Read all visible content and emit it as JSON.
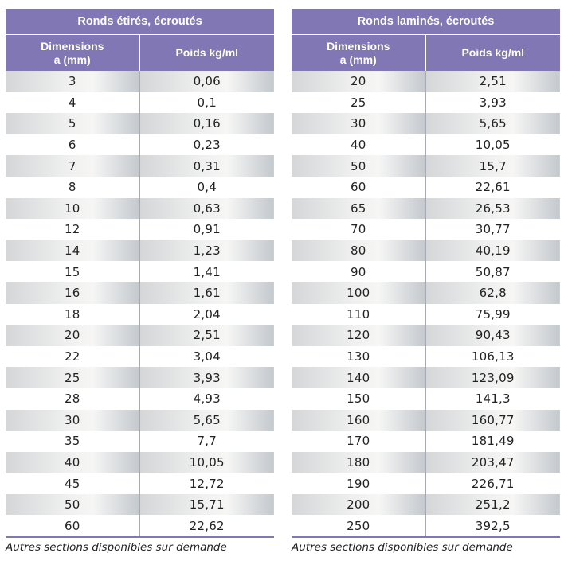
{
  "tables": [
    {
      "title": "Ronds étirés, écroutés",
      "col_dim_line1": "Dimensions",
      "col_dim_line2": "a (mm)",
      "col_weight": "Poids kg/ml",
      "rows": [
        {
          "dim": "3",
          "weight": "0,06"
        },
        {
          "dim": "4",
          "weight": "0,1"
        },
        {
          "dim": "5",
          "weight": "0,16"
        },
        {
          "dim": "6",
          "weight": "0,23"
        },
        {
          "dim": "7",
          "weight": "0,31"
        },
        {
          "dim": "8",
          "weight": "0,4"
        },
        {
          "dim": "10",
          "weight": "0,63"
        },
        {
          "dim": "12",
          "weight": "0,91"
        },
        {
          "dim": "14",
          "weight": "1,23"
        },
        {
          "dim": "15",
          "weight": "1,41"
        },
        {
          "dim": "16",
          "weight": "1,61"
        },
        {
          "dim": "18",
          "weight": "2,04"
        },
        {
          "dim": "20",
          "weight": "2,51"
        },
        {
          "dim": "22",
          "weight": "3,04"
        },
        {
          "dim": "25",
          "weight": "3,93"
        },
        {
          "dim": "28",
          "weight": "4,93"
        },
        {
          "dim": "30",
          "weight": "5,65"
        },
        {
          "dim": "35",
          "weight": "7,7"
        },
        {
          "dim": "40",
          "weight": "10,05"
        },
        {
          "dim": "45",
          "weight": "12,72"
        },
        {
          "dim": "50",
          "weight": "15,71"
        },
        {
          "dim": "60",
          "weight": "22,62"
        }
      ],
      "note": "Autres sections disponibles sur demande"
    },
    {
      "title": "Ronds laminés, écroutés",
      "col_dim_line1": "Dimensions",
      "col_dim_line2": "a (mm)",
      "col_weight": "Poids kg/ml",
      "rows": [
        {
          "dim": "20",
          "weight": "2,51"
        },
        {
          "dim": "25",
          "weight": "3,93"
        },
        {
          "dim": "30",
          "weight": "5,65"
        },
        {
          "dim": "40",
          "weight": "10,05"
        },
        {
          "dim": "50",
          "weight": "15,7"
        },
        {
          "dim": "60",
          "weight": "22,61"
        },
        {
          "dim": "65",
          "weight": "26,53"
        },
        {
          "dim": "70",
          "weight": "30,77"
        },
        {
          "dim": "80",
          "weight": "40,19"
        },
        {
          "dim": "90",
          "weight": "50,87"
        },
        {
          "dim": "100",
          "weight": "62,8"
        },
        {
          "dim": "110",
          "weight": "75,99"
        },
        {
          "dim": "120",
          "weight": "90,43"
        },
        {
          "dim": "130",
          "weight": "106,13"
        },
        {
          "dim": "140",
          "weight": "123,09"
        },
        {
          "dim": "150",
          "weight": "141,3"
        },
        {
          "dim": "160",
          "weight": "160,77"
        },
        {
          "dim": "170",
          "weight": "181,49"
        },
        {
          "dim": "180",
          "weight": "203,47"
        },
        {
          "dim": "190",
          "weight": "226,71"
        },
        {
          "dim": "200",
          "weight": "251,2"
        },
        {
          "dim": "250",
          "weight": "392,5"
        }
      ],
      "note": "Autres sections disponibles sur demande"
    }
  ],
  "colors": {
    "header_bg": "#8077b4",
    "header_text": "#ffffff",
    "body_text": "#222222"
  }
}
